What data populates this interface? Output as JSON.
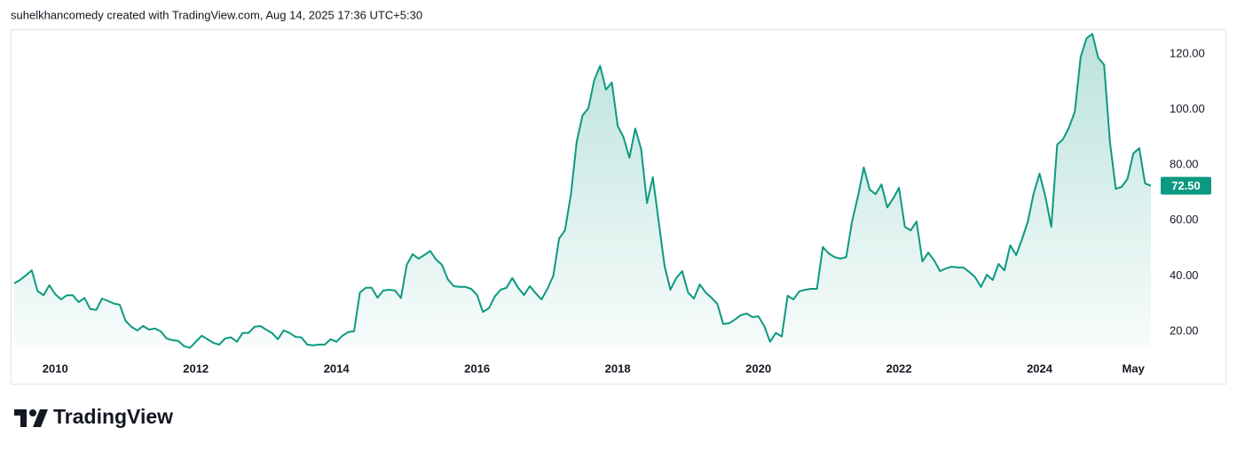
{
  "header": "suhelkhancomedy created with TradingView.com, Aug 14, 2025 17:36 UTC+5:30",
  "brand": "TradingView",
  "chart_data": {
    "type": "area",
    "color": "#0c9981",
    "x": [
      "2009-06",
      "2009-07",
      "2009-08",
      "2009-09",
      "2009-10",
      "2009-11",
      "2009-12",
      "2010-01",
      "2010-02",
      "2010-03",
      "2010-04",
      "2010-05",
      "2010-06",
      "2010-07",
      "2010-08",
      "2010-09",
      "2010-10",
      "2010-11",
      "2010-12",
      "2011-01",
      "2011-02",
      "2011-03",
      "2011-04",
      "2011-05",
      "2011-06",
      "2011-07",
      "2011-08",
      "2011-09",
      "2011-10",
      "2011-11",
      "2011-12",
      "2012-01",
      "2012-02",
      "2012-03",
      "2012-04",
      "2012-05",
      "2012-06",
      "2012-07",
      "2012-08",
      "2012-09",
      "2012-10",
      "2012-11",
      "2012-12",
      "2013-01",
      "2013-02",
      "2013-03",
      "2013-04",
      "2013-05",
      "2013-06",
      "2013-07",
      "2013-08",
      "2013-09",
      "2013-10",
      "2013-11",
      "2013-12",
      "2014-01",
      "2014-02",
      "2014-03",
      "2014-04",
      "2014-05",
      "2014-06",
      "2014-07",
      "2014-08",
      "2014-09",
      "2014-10",
      "2014-11",
      "2014-12",
      "2015-01",
      "2015-02",
      "2015-03",
      "2015-04",
      "2015-05",
      "2015-06",
      "2015-07",
      "2015-08",
      "2015-09",
      "2015-10",
      "2015-11",
      "2015-12",
      "2016-01",
      "2016-02",
      "2016-03",
      "2016-04",
      "2016-05",
      "2016-06",
      "2016-07",
      "2016-08",
      "2016-09",
      "2016-10",
      "2016-11",
      "2016-12",
      "2017-01",
      "2017-02",
      "2017-03",
      "2017-04",
      "2017-05",
      "2017-06",
      "2017-07",
      "2017-08",
      "2017-09",
      "2017-10",
      "2017-11",
      "2017-12",
      "2018-01",
      "2018-02",
      "2018-03",
      "2018-04",
      "2018-05",
      "2018-06",
      "2018-07",
      "2018-08",
      "2018-09",
      "2018-10",
      "2018-11",
      "2018-12",
      "2019-01",
      "2019-02",
      "2019-03",
      "2019-04",
      "2019-05",
      "2019-06",
      "2019-07",
      "2019-08",
      "2019-09",
      "2019-10",
      "2019-11",
      "2019-12",
      "2020-01",
      "2020-02",
      "2020-03",
      "2020-04",
      "2020-05",
      "2020-06",
      "2020-07",
      "2020-08",
      "2020-09",
      "2020-10",
      "2020-11",
      "2020-12",
      "2021-01",
      "2021-02",
      "2021-03",
      "2021-04",
      "2021-05",
      "2021-06",
      "2021-07",
      "2021-08",
      "2021-09",
      "2021-10",
      "2021-11",
      "2021-12",
      "2022-01",
      "2022-02",
      "2022-03",
      "2022-04",
      "2022-05",
      "2022-06",
      "2022-07",
      "2022-08",
      "2022-09",
      "2022-10",
      "2022-11",
      "2022-12",
      "2023-01",
      "2023-02",
      "2023-03",
      "2023-04",
      "2023-05",
      "2023-06",
      "2023-07",
      "2023-08",
      "2023-09",
      "2023-10",
      "2023-11",
      "2023-12",
      "2024-01",
      "2024-02",
      "2024-03",
      "2024-04",
      "2024-05",
      "2024-06",
      "2024-07",
      "2024-08",
      "2024-09",
      "2024-10",
      "2024-11",
      "2024-12",
      "2025-01",
      "2025-02",
      "2025-03",
      "2025-04",
      "2025-05",
      "2025-06",
      "2025-07",
      "2025-08"
    ],
    "values": [
      37.3,
      38.5,
      40.2,
      42,
      34.5,
      33,
      36.6,
      33.4,
      31.5,
      33,
      33,
      30.5,
      32,
      28,
      27.7,
      31.8,
      31,
      30,
      29.6,
      23.8,
      21.6,
      20.3,
      21.9,
      20.6,
      21,
      20,
      17.4,
      16.8,
      16.5,
      14.6,
      14,
      16.2,
      18.4,
      17.1,
      15.8,
      15.2,
      17.4,
      17.8,
      16.2,
      19.4,
      19.4,
      21.6,
      21.9,
      20.6,
      19.4,
      17.1,
      20.3,
      19.4,
      18,
      17.8,
      15.2,
      14.9,
      15.2,
      15.2,
      17.1,
      16.2,
      18.4,
      19.7,
      20,
      34,
      35.7,
      35.7,
      32.1,
      34.7,
      35,
      34.7,
      32,
      44,
      47.8,
      46.2,
      47.5,
      49,
      45.9,
      44,
      38.8,
      36.3,
      36,
      36,
      35.3,
      33.1,
      27,
      28.3,
      32.5,
      35,
      35.7,
      39.2,
      35.7,
      33.1,
      36.3,
      33.7,
      31.5,
      35.3,
      40,
      53.5,
      56.4,
      69.2,
      88.4,
      97.9,
      100.5,
      110.7,
      115.8,
      107.2,
      109.8,
      94.1,
      90,
      82.6,
      93.2,
      85.8,
      66.3,
      75.6,
      59.6,
      43.6,
      35,
      39.2,
      41.7,
      34,
      31.8,
      36.9,
      34,
      32.1,
      29.9,
      22.6,
      22.9,
      24.2,
      25.8,
      26.4,
      25.1,
      25.4,
      21.9,
      16.2,
      19.4,
      18.1,
      32.8,
      31.5,
      34.4,
      35,
      35.3,
      35.3,
      50.4,
      48.1,
      46.8,
      46.2,
      46.8,
      59.6,
      68.6,
      79.1,
      71.1,
      69.5,
      73,
      64.7,
      67.9,
      71.8,
      57.7,
      56.4,
      59.6,
      45.2,
      48.4,
      45.6,
      41.7,
      42.7,
      43.3,
      43,
      43,
      41.4,
      39.5,
      36,
      40.4,
      38.5,
      44.3,
      42,
      51,
      47.5,
      53.2,
      59.6,
      69.8,
      76.9,
      68.6,
      57.7,
      87.4,
      89.3,
      93.5,
      99.2,
      119,
      125.7,
      127.3,
      118.7,
      116.2,
      88.4,
      71.4,
      72.1,
      75,
      84.2,
      86.1,
      73.4,
      72.5
    ],
    "value_labels": {
      "194": "72.50"
    },
    "xlim": [
      "2009-06",
      "2025-08"
    ],
    "xticks": [
      {
        "value": "2010-01",
        "label": "2010"
      },
      {
        "value": "2012-01",
        "label": "2012"
      },
      {
        "value": "2014-01",
        "label": "2014"
      },
      {
        "value": "2016-01",
        "label": "2016"
      },
      {
        "value": "2018-01",
        "label": "2018"
      },
      {
        "value": "2020-01",
        "label": "2020"
      },
      {
        "value": "2022-01",
        "label": "2022"
      },
      {
        "value": "2024-01",
        "label": "2024"
      },
      {
        "value": "2025-05",
        "label": "May"
      }
    ],
    "ylim": [
      14.2,
      129
    ],
    "yticks": [
      {
        "value": 20,
        "label": "20.00"
      },
      {
        "value": 40,
        "label": "40.00"
      },
      {
        "value": 60,
        "label": "60.00"
      },
      {
        "value": 80,
        "label": "80.00"
      },
      {
        "value": 100,
        "label": "100.00"
      },
      {
        "value": 120,
        "label": "120.00"
      }
    ]
  }
}
